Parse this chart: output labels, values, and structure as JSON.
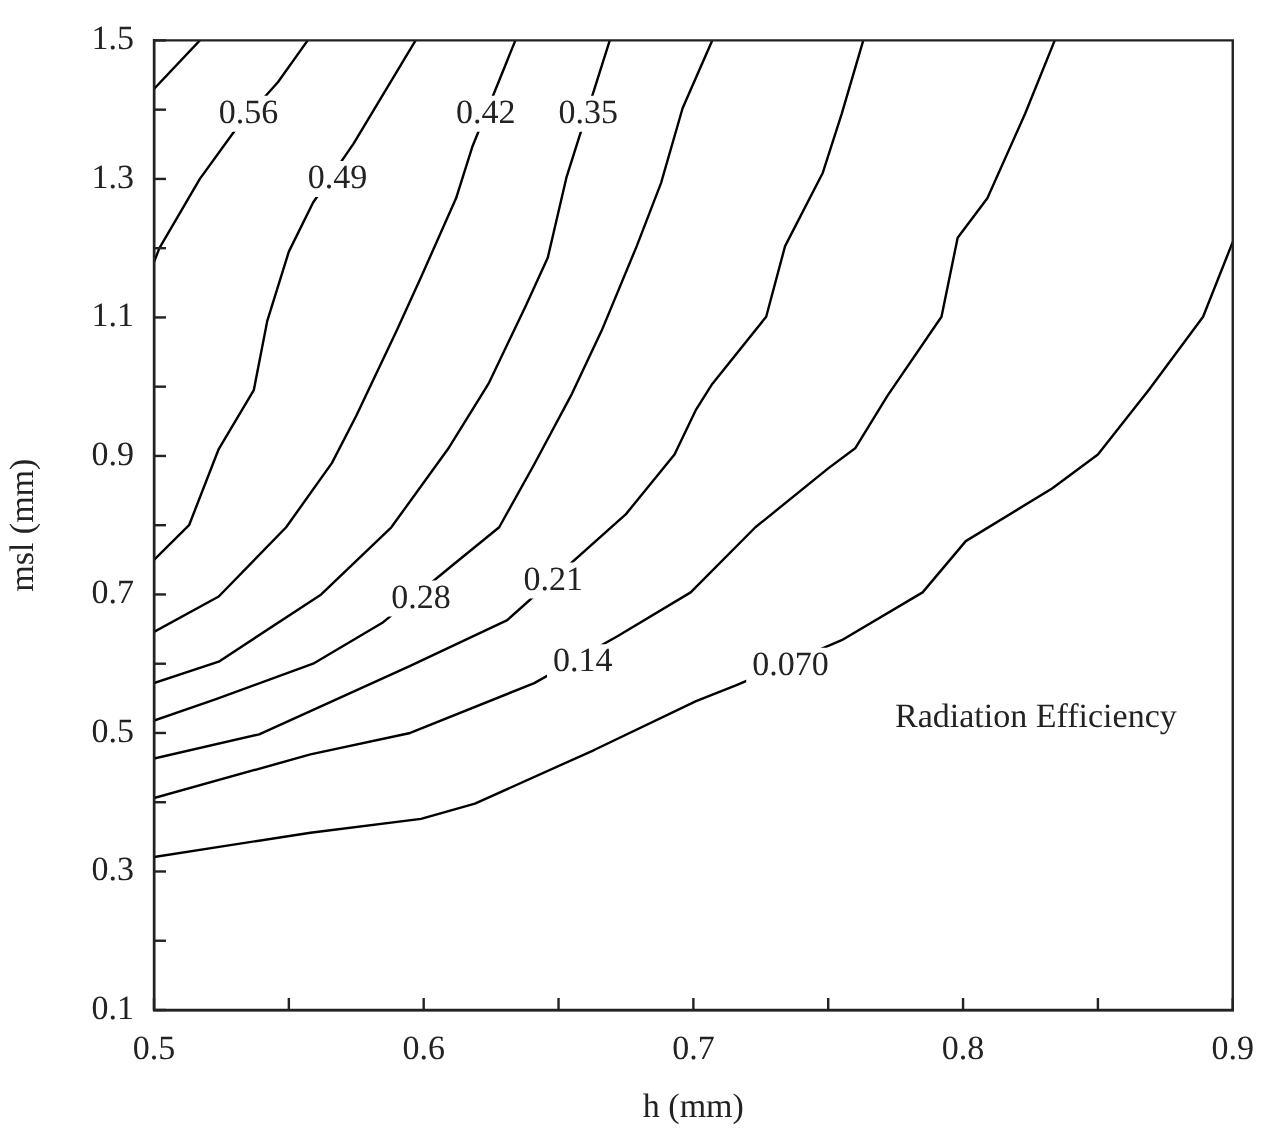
{
  "chart_data": {
    "type": "line",
    "xlabel": "h (mm)",
    "ylabel": "msl (mm)",
    "annotations": [
      {
        "text": "0.56",
        "x": 0.535,
        "y": 1.394
      },
      {
        "text": "0.49",
        "x": 0.568,
        "y": 1.3
      },
      {
        "text": "0.42",
        "x": 0.623,
        "y": 1.394
      },
      {
        "text": "0.35",
        "x": 0.661,
        "y": 1.394
      },
      {
        "text": "0.28",
        "x": 0.599,
        "y": 0.694
      },
      {
        "text": "0.21",
        "x": 0.648,
        "y": 0.72
      },
      {
        "text": "0.14",
        "x": 0.659,
        "y": 0.602
      },
      {
        "text": "0.070",
        "x": 0.736,
        "y": 0.597
      },
      "Radiation Efficiency"
    ],
    "series": [
      {
        "color": "#000000",
        "x": [
          0.5,
          0.517
        ],
        "values": [
          1.43,
          1.5
        ]
      },
      {
        "color": "#000000",
        "x": [
          0.5,
          0.502,
          0.517,
          0.53,
          0.546,
          0.557
        ],
        "values": [
          1.18,
          1.2,
          1.3,
          1.37,
          1.44,
          1.5
        ]
      },
      {
        "color": "#000000",
        "x": [
          0.5,
          0.513,
          0.524,
          0.537,
          0.542,
          0.55,
          0.559,
          0.574,
          0.597
        ],
        "values": [
          0.75,
          0.8,
          0.91,
          0.995,
          1.095,
          1.195,
          1.266,
          1.351,
          1.5
        ]
      },
      {
        "color": "#000000",
        "x": [
          0.5,
          0.524,
          0.549,
          0.566,
          0.575,
          0.59,
          0.599,
          0.612,
          0.618,
          0.634
        ],
        "values": [
          0.646,
          0.697,
          0.797,
          0.89,
          0.958,
          1.081,
          1.158,
          1.272,
          1.346,
          1.5
        ]
      },
      {
        "color": "#000000",
        "x": [
          0.5,
          0.524,
          0.562,
          0.588,
          0.609,
          0.624,
          0.638,
          0.646,
          0.653,
          0.669
        ],
        "values": [
          0.572,
          0.603,
          0.7,
          0.797,
          0.91,
          1.004,
          1.118,
          1.186,
          1.303,
          1.5
        ]
      },
      {
        "color": "#000000",
        "x": [
          0.5,
          0.523,
          0.559,
          0.585,
          0.61,
          0.628,
          0.641,
          0.655,
          0.666,
          0.679,
          0.688,
          0.696,
          0.707
        ],
        "values": [
          0.518,
          0.549,
          0.6,
          0.66,
          0.74,
          0.797,
          0.888,
          0.99,
          1.081,
          1.203,
          1.294,
          1.402,
          1.5
        ]
      },
      {
        "color": "#000000",
        "x": [
          0.5,
          0.539,
          0.595,
          0.631,
          0.675,
          0.693,
          0.701,
          0.707,
          0.727,
          0.734,
          0.748,
          0.755,
          0.763
        ],
        "values": [
          0.463,
          0.498,
          0.597,
          0.663,
          0.816,
          0.902,
          0.967,
          1.004,
          1.101,
          1.203,
          1.309,
          1.394,
          1.5
        ]
      },
      {
        "color": "#000000",
        "x": [
          0.5,
          0.558,
          0.595,
          0.641,
          0.672,
          0.699,
          0.723,
          0.75,
          0.76,
          0.772,
          0.792,
          0.798,
          0.809,
          0.823,
          0.834
        ],
        "values": [
          0.406,
          0.469,
          0.5,
          0.572,
          0.64,
          0.703,
          0.797,
          0.882,
          0.911,
          0.987,
          1.101,
          1.215,
          1.272,
          1.394,
          1.5
        ]
      },
      {
        "color": "#000000",
        "x": [
          0.5,
          0.558,
          0.599,
          0.619,
          0.663,
          0.701,
          0.716,
          0.755,
          0.785,
          0.801,
          0.833,
          0.85,
          0.869,
          0.889,
          0.9
        ],
        "values": [
          0.321,
          0.356,
          0.376,
          0.398,
          0.475,
          0.546,
          0.569,
          0.634,
          0.703,
          0.777,
          0.853,
          0.902,
          0.996,
          1.101,
          1.209
        ]
      }
    ],
    "xlim": [
      0.5,
      0.9
    ],
    "xticks": [
      0.5,
      {
        "value": 0.55,
        "label": null
      },
      0.6,
      {
        "value": 0.65,
        "label": null
      },
      0.7,
      {
        "value": 0.75,
        "label": null
      },
      0.8,
      {
        "value": 0.85,
        "label": null
      },
      0.9
    ],
    "ylim": [
      0.1,
      1.5
    ],
    "yticks": [
      0.1,
      {
        "value": 0.2,
        "label": null
      },
      0.3,
      {
        "value": 0.4,
        "label": null
      },
      0.5,
      {
        "value": 0.6,
        "label": null
      },
      0.7,
      {
        "value": 0.8,
        "label": null
      },
      0.9,
      {
        "value": 1.0,
        "label": null
      },
      1.1,
      {
        "value": 1.2,
        "label": null
      },
      1.3,
      {
        "value": 1.4,
        "label": null
      },
      1.5
    ],
    "grid": false,
    "legend": false,
    "marker": "none",
    "line_style": "solid"
  }
}
